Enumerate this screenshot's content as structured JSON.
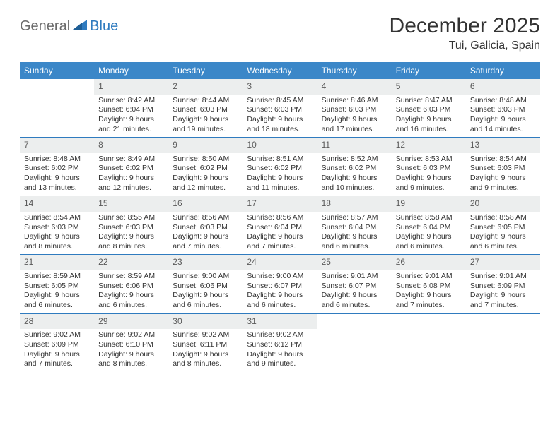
{
  "brand": {
    "part1": "General",
    "part2": "Blue"
  },
  "title": "December 2025",
  "location": "Tui, Galicia, Spain",
  "colors": {
    "header_bar": "#3b87c8",
    "rule": "#2f7bbf",
    "daynum_bg": "#eceeee",
    "text": "#333333",
    "logo_gray": "#6a6a6a",
    "logo_blue": "#2f7bbf",
    "background": "#ffffff"
  },
  "dow": [
    "Sunday",
    "Monday",
    "Tuesday",
    "Wednesday",
    "Thursday",
    "Friday",
    "Saturday"
  ],
  "weeks": [
    [
      {
        "n": "",
        "sr": "",
        "ss": "",
        "dl": ""
      },
      {
        "n": "1",
        "sr": "Sunrise: 8:42 AM",
        "ss": "Sunset: 6:04 PM",
        "dl": "Daylight: 9 hours and 21 minutes."
      },
      {
        "n": "2",
        "sr": "Sunrise: 8:44 AM",
        "ss": "Sunset: 6:03 PM",
        "dl": "Daylight: 9 hours and 19 minutes."
      },
      {
        "n": "3",
        "sr": "Sunrise: 8:45 AM",
        "ss": "Sunset: 6:03 PM",
        "dl": "Daylight: 9 hours and 18 minutes."
      },
      {
        "n": "4",
        "sr": "Sunrise: 8:46 AM",
        "ss": "Sunset: 6:03 PM",
        "dl": "Daylight: 9 hours and 17 minutes."
      },
      {
        "n": "5",
        "sr": "Sunrise: 8:47 AM",
        "ss": "Sunset: 6:03 PM",
        "dl": "Daylight: 9 hours and 16 minutes."
      },
      {
        "n": "6",
        "sr": "Sunrise: 8:48 AM",
        "ss": "Sunset: 6:03 PM",
        "dl": "Daylight: 9 hours and 14 minutes."
      }
    ],
    [
      {
        "n": "7",
        "sr": "Sunrise: 8:48 AM",
        "ss": "Sunset: 6:02 PM",
        "dl": "Daylight: 9 hours and 13 minutes."
      },
      {
        "n": "8",
        "sr": "Sunrise: 8:49 AM",
        "ss": "Sunset: 6:02 PM",
        "dl": "Daylight: 9 hours and 12 minutes."
      },
      {
        "n": "9",
        "sr": "Sunrise: 8:50 AM",
        "ss": "Sunset: 6:02 PM",
        "dl": "Daylight: 9 hours and 12 minutes."
      },
      {
        "n": "10",
        "sr": "Sunrise: 8:51 AM",
        "ss": "Sunset: 6:02 PM",
        "dl": "Daylight: 9 hours and 11 minutes."
      },
      {
        "n": "11",
        "sr": "Sunrise: 8:52 AM",
        "ss": "Sunset: 6:02 PM",
        "dl": "Daylight: 9 hours and 10 minutes."
      },
      {
        "n": "12",
        "sr": "Sunrise: 8:53 AM",
        "ss": "Sunset: 6:03 PM",
        "dl": "Daylight: 9 hours and 9 minutes."
      },
      {
        "n": "13",
        "sr": "Sunrise: 8:54 AM",
        "ss": "Sunset: 6:03 PM",
        "dl": "Daylight: 9 hours and 9 minutes."
      }
    ],
    [
      {
        "n": "14",
        "sr": "Sunrise: 8:54 AM",
        "ss": "Sunset: 6:03 PM",
        "dl": "Daylight: 9 hours and 8 minutes."
      },
      {
        "n": "15",
        "sr": "Sunrise: 8:55 AM",
        "ss": "Sunset: 6:03 PM",
        "dl": "Daylight: 9 hours and 8 minutes."
      },
      {
        "n": "16",
        "sr": "Sunrise: 8:56 AM",
        "ss": "Sunset: 6:03 PM",
        "dl": "Daylight: 9 hours and 7 minutes."
      },
      {
        "n": "17",
        "sr": "Sunrise: 8:56 AM",
        "ss": "Sunset: 6:04 PM",
        "dl": "Daylight: 9 hours and 7 minutes."
      },
      {
        "n": "18",
        "sr": "Sunrise: 8:57 AM",
        "ss": "Sunset: 6:04 PM",
        "dl": "Daylight: 9 hours and 6 minutes."
      },
      {
        "n": "19",
        "sr": "Sunrise: 8:58 AM",
        "ss": "Sunset: 6:04 PM",
        "dl": "Daylight: 9 hours and 6 minutes."
      },
      {
        "n": "20",
        "sr": "Sunrise: 8:58 AM",
        "ss": "Sunset: 6:05 PM",
        "dl": "Daylight: 9 hours and 6 minutes."
      }
    ],
    [
      {
        "n": "21",
        "sr": "Sunrise: 8:59 AM",
        "ss": "Sunset: 6:05 PM",
        "dl": "Daylight: 9 hours and 6 minutes."
      },
      {
        "n": "22",
        "sr": "Sunrise: 8:59 AM",
        "ss": "Sunset: 6:06 PM",
        "dl": "Daylight: 9 hours and 6 minutes."
      },
      {
        "n": "23",
        "sr": "Sunrise: 9:00 AM",
        "ss": "Sunset: 6:06 PM",
        "dl": "Daylight: 9 hours and 6 minutes."
      },
      {
        "n": "24",
        "sr": "Sunrise: 9:00 AM",
        "ss": "Sunset: 6:07 PM",
        "dl": "Daylight: 9 hours and 6 minutes."
      },
      {
        "n": "25",
        "sr": "Sunrise: 9:01 AM",
        "ss": "Sunset: 6:07 PM",
        "dl": "Daylight: 9 hours and 6 minutes."
      },
      {
        "n": "26",
        "sr": "Sunrise: 9:01 AM",
        "ss": "Sunset: 6:08 PM",
        "dl": "Daylight: 9 hours and 7 minutes."
      },
      {
        "n": "27",
        "sr": "Sunrise: 9:01 AM",
        "ss": "Sunset: 6:09 PM",
        "dl": "Daylight: 9 hours and 7 minutes."
      }
    ],
    [
      {
        "n": "28",
        "sr": "Sunrise: 9:02 AM",
        "ss": "Sunset: 6:09 PM",
        "dl": "Daylight: 9 hours and 7 minutes."
      },
      {
        "n": "29",
        "sr": "Sunrise: 9:02 AM",
        "ss": "Sunset: 6:10 PM",
        "dl": "Daylight: 9 hours and 8 minutes."
      },
      {
        "n": "30",
        "sr": "Sunrise: 9:02 AM",
        "ss": "Sunset: 6:11 PM",
        "dl": "Daylight: 9 hours and 8 minutes."
      },
      {
        "n": "31",
        "sr": "Sunrise: 9:02 AM",
        "ss": "Sunset: 6:12 PM",
        "dl": "Daylight: 9 hours and 9 minutes."
      },
      {
        "n": "",
        "sr": "",
        "ss": "",
        "dl": ""
      },
      {
        "n": "",
        "sr": "",
        "ss": "",
        "dl": ""
      },
      {
        "n": "",
        "sr": "",
        "ss": "",
        "dl": ""
      }
    ]
  ]
}
